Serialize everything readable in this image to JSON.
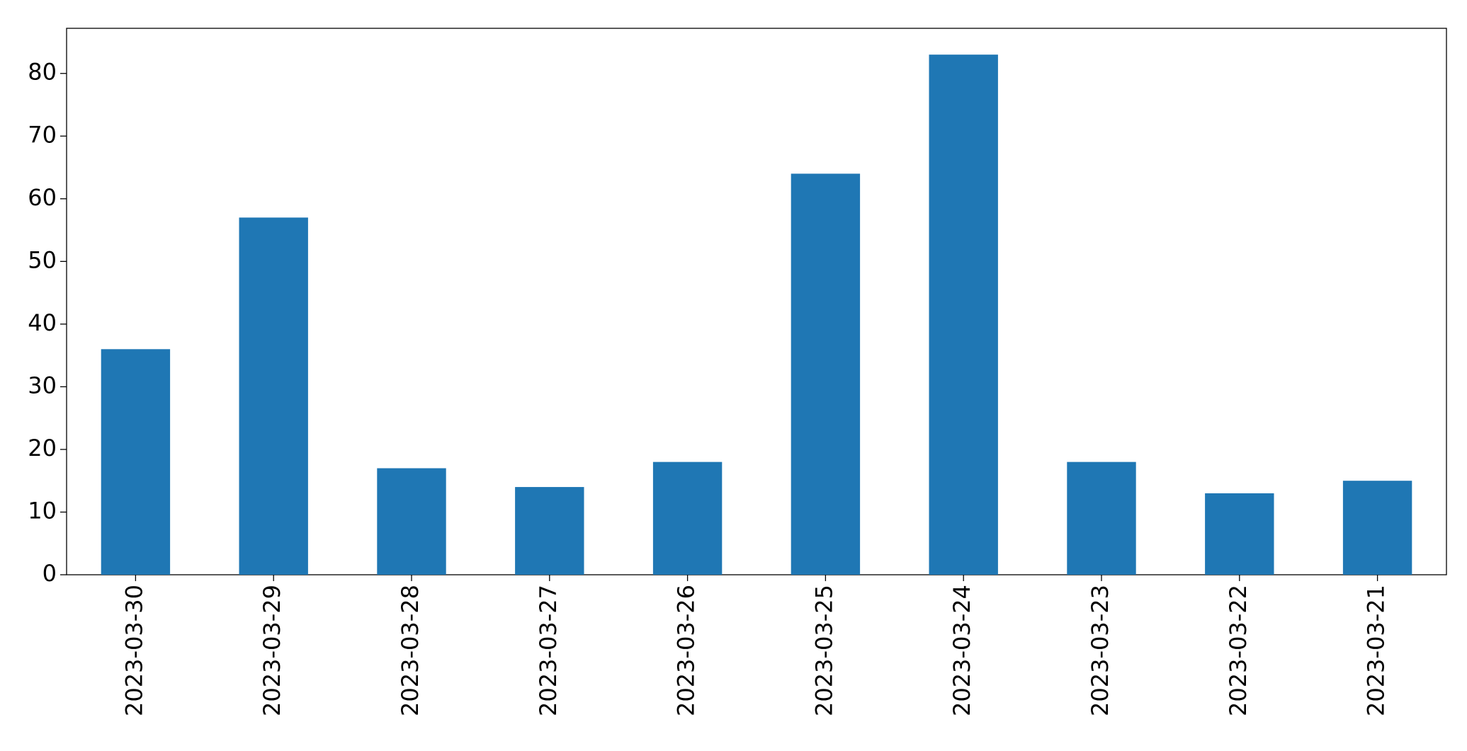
{
  "chart_data": {
    "type": "bar",
    "categories": [
      "2023-03-30",
      "2023-03-29",
      "2023-03-28",
      "2023-03-27",
      "2023-03-26",
      "2023-03-25",
      "2023-03-24",
      "2023-03-23",
      "2023-03-22",
      "2023-03-21"
    ],
    "values": [
      36,
      57,
      17,
      14,
      18,
      64,
      83,
      18,
      13,
      15
    ],
    "color": "#1f77b4",
    "ylim": [
      0,
      87.2
    ],
    "yticks": [
      0,
      10,
      20,
      30,
      40,
      50,
      60,
      70,
      80
    ],
    "grid": false
  }
}
